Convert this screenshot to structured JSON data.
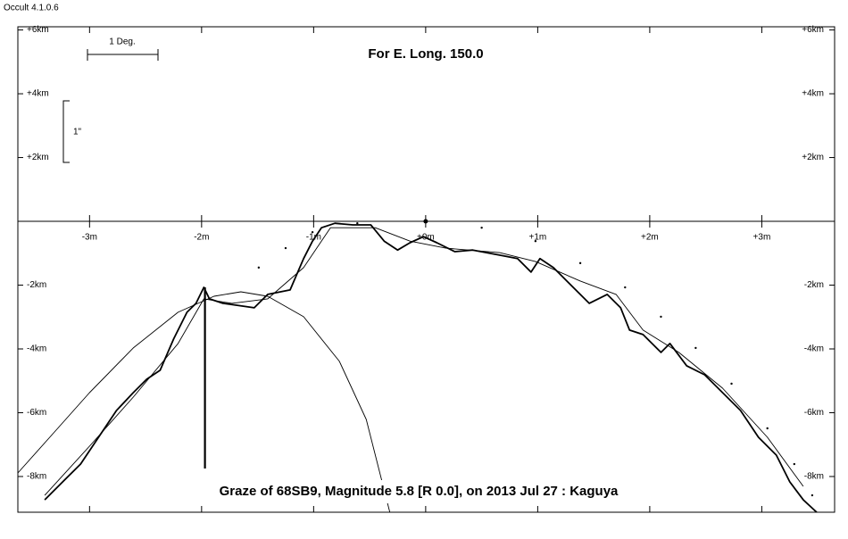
{
  "app": "Occult 4.1.0.6",
  "scale_degree": "1 Deg.",
  "scale_arcsec": "1\"",
  "chart_data": {
    "type": "line",
    "title": "For E. Long. 150.0",
    "subtitle": "Graze of  68SB9,  Magnitude 5.8 [R 0.0],  on 2013 Jul 27  :  Kaguya",
    "xlim": [
      -3.64,
      3.65
    ],
    "ylim": [
      -9.12,
      6.1
    ],
    "xticks": [
      {
        "value": -3,
        "label": "-3m"
      },
      {
        "value": -2,
        "label": "-2m"
      },
      {
        "value": -1,
        "label": "-1m"
      },
      {
        "value": 0,
        "label": "+0m"
      },
      {
        "value": 1,
        "label": "+1m"
      },
      {
        "value": 2,
        "label": "+2m"
      },
      {
        "value": 3,
        "label": "+3m"
      }
    ],
    "yticks": [
      {
        "value": 6,
        "label": "+6km"
      },
      {
        "value": 4,
        "label": "+4km"
      },
      {
        "value": 2,
        "label": "+2km"
      },
      {
        "value": -2,
        "label": "-2km"
      },
      {
        "value": -4,
        "label": "-4km"
      },
      {
        "value": -6,
        "label": "-6km"
      },
      {
        "value": -8,
        "label": "-8km"
      }
    ],
    "series": [
      {
        "color": "#000000",
        "style": "thick",
        "x": [
          -3.4,
          -3.24,
          -3.08,
          -2.92,
          -2.76,
          -2.61,
          -2.49,
          -2.37,
          -2.25,
          -2.13,
          -2.05,
          -1.98,
          -1.93,
          -1.81,
          -1.69,
          -1.53,
          -1.41,
          -1.21,
          -1.09,
          -1.01,
          -0.93,
          -0.81,
          -0.65,
          -0.49,
          -0.37,
          -0.25,
          -0.14,
          -0.02,
          0.1,
          0.26,
          0.42,
          0.66,
          0.82,
          0.94,
          1.02,
          1.14,
          1.3,
          1.46,
          1.62,
          1.74,
          1.82,
          1.94,
          2.1,
          2.18,
          2.33,
          2.49,
          2.65,
          2.81,
          2.97,
          3.13,
          3.25,
          3.37,
          3.49
        ],
        "values": [
          -8.73,
          -8.17,
          -7.61,
          -6.77,
          -5.93,
          -5.37,
          -4.95,
          -4.67,
          -3.69,
          -2.85,
          -2.57,
          -2.07,
          -2.43,
          -2.57,
          -2.63,
          -2.71,
          -2.29,
          -2.15,
          -1.17,
          -0.62,
          -0.2,
          -0.06,
          -0.11,
          -0.11,
          -0.62,
          -0.9,
          -0.67,
          -0.48,
          -0.67,
          -0.95,
          -0.9,
          -1.06,
          -1.17,
          -1.59,
          -1.17,
          -1.45,
          -2.01,
          -2.57,
          -2.29,
          -2.71,
          -3.41,
          -3.55,
          -4.11,
          -3.83,
          -4.53,
          -4.81,
          -5.37,
          -5.93,
          -6.77,
          -7.33,
          -8.17,
          -8.73,
          -9.12
        ]
      },
      {
        "color": "#000000",
        "style": "thin",
        "x": [
          -3.4,
          -3.0,
          -2.61,
          -2.21,
          -1.98,
          -1.73,
          -1.41,
          -1.09,
          -0.85,
          -0.45,
          -0.14,
          0.18,
          0.66,
          0.98,
          1.38,
          1.7,
          1.94,
          2.26,
          2.65,
          3.05,
          3.37
        ],
        "values": [
          -8.59,
          -7.05,
          -5.51,
          -3.83,
          -2.43,
          -2.57,
          -2.43,
          -1.45,
          -0.2,
          -0.2,
          -0.62,
          -0.84,
          -0.98,
          -1.26,
          -1.87,
          -2.29,
          -3.41,
          -4.11,
          -5.23,
          -6.77,
          -8.31
        ]
      },
      {
        "color": "#000000",
        "style": "dotted",
        "x": [
          -1.49,
          -1.25,
          -1.01,
          -0.61,
          0,
          0.5,
          0.98,
          1.38,
          1.78,
          2.1,
          2.41,
          2.73,
          3.05,
          3.29,
          3.45
        ],
        "values": [
          -1.45,
          -0.84,
          -0.34,
          -0.06,
          0,
          -0.2,
          -0.62,
          -1.31,
          -2.07,
          -2.99,
          -3.97,
          -5.09,
          -6.49,
          -7.61,
          -8.59
        ]
      },
      {
        "color": "#000000",
        "style": "thin",
        "x": [
          -3.64,
          -3.32,
          -3.0,
          -2.61,
          -2.21,
          -1.89,
          -1.65,
          -1.41,
          -1.09,
          -0.77,
          -0.53,
          -0.32
        ],
        "values": [
          -7.89,
          -6.63,
          -5.37,
          -3.97,
          -2.85,
          -2.35,
          -2.21,
          -2.35,
          -2.99,
          -4.39,
          -6.21,
          -9.12
        ]
      },
      {
        "color": "#000000",
        "style": "bold",
        "x": [
          -1.97,
          -1.97
        ],
        "values": [
          -2.07,
          -7.75
        ]
      }
    ]
  }
}
